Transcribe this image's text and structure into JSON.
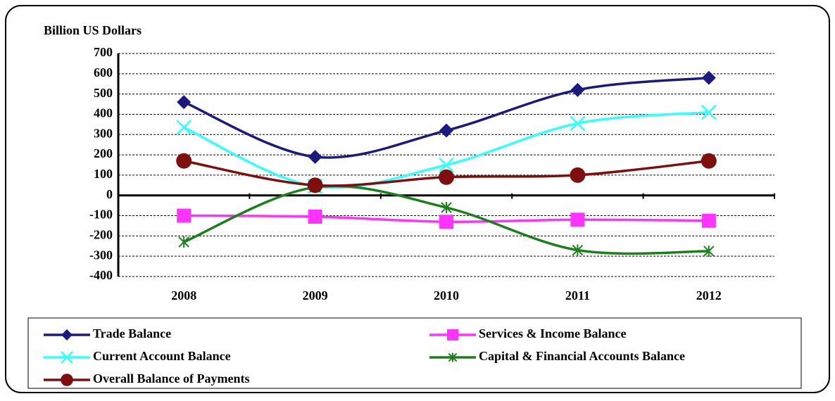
{
  "chart_data": {
    "type": "line",
    "ylabel": "Billion US Dollars",
    "categories": [
      "2008",
      "2009",
      "2010",
      "2011",
      "2012"
    ],
    "series": [
      {
        "name": "Trade Balance",
        "color": "#1a1a80",
        "marker": "diamond",
        "values": [
          460,
          190,
          320,
          520,
          580
        ]
      },
      {
        "name": "Services & Income Balance",
        "color": "#ff33ff",
        "marker": "square",
        "values": [
          -100,
          -105,
          -130,
          -120,
          -125
        ]
      },
      {
        "name": "Current Account Balance",
        "color": "#33ffff",
        "marker": "x",
        "values": [
          335,
          45,
          150,
          355,
          410
        ]
      },
      {
        "name": "Capital & Financial Accounts Balance",
        "color": "#1a801a",
        "marker": "asterisk",
        "values": [
          -230,
          40,
          -60,
          -270,
          -275
        ]
      },
      {
        "name": "Overall Balance of Payments",
        "color": "#7f0f0f",
        "marker": "circle",
        "values": [
          170,
          50,
          90,
          100,
          170
        ]
      }
    ],
    "ylim": [
      -400,
      700
    ],
    "yticks": [
      -400,
      -300,
      -200,
      -100,
      0,
      100,
      200,
      300,
      400,
      500,
      600,
      700
    ],
    "grid": true,
    "smooth": true
  }
}
